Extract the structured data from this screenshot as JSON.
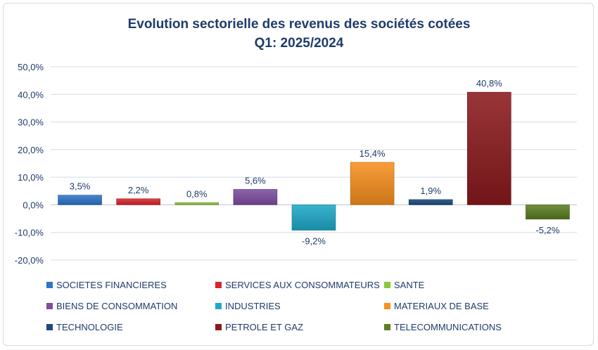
{
  "chart_data": {
    "type": "bar",
    "title": [
      "Evolution sectorielle des revenus des sociétés cotées",
      "Q1: 2025/2024"
    ],
    "ylim": [
      -20,
      50
    ],
    "yticks": [
      "50,0%",
      "40,0%",
      "30,0%",
      "20,0%",
      "10,0%",
      "0,0%",
      "-10,0%",
      "-20,0%"
    ],
    "grid": true,
    "legend_position": "bottom",
    "series": [
      {
        "name": "SOCIETES FINANCIERES",
        "value": 3.5,
        "label": "3,5%",
        "color": "#2e75c8"
      },
      {
        "name": "SERVICES AUX CONSOMMATEURS",
        "value": 2.2,
        "label": "2,2%",
        "color": "#d9252c"
      },
      {
        "name": "SANTE",
        "value": 0.8,
        "label": "0,8%",
        "color": "#8dc63f"
      },
      {
        "name": "BIENS DE CONSOMMATION",
        "value": 5.6,
        "label": "5,6%",
        "color": "#7e4ea1"
      },
      {
        "name": "INDUSTRIES",
        "value": -9.2,
        "label": "-9,2%",
        "color": "#1ea9c9"
      },
      {
        "name": "MATERIAUX DE BASE",
        "value": 15.4,
        "label": "15,4%",
        "color": "#f7901e"
      },
      {
        "name": "TECHNOLOGIE",
        "value": 1.9,
        "label": "1,9%",
        "color": "#1c4a7e"
      },
      {
        "name": "PETROLE ET GAZ",
        "value": 40.8,
        "label": "40,8%",
        "color": "#8b1a1d"
      },
      {
        "name": "TELECOMMUNICATIONS",
        "value": -5.2,
        "label": "-5,2%",
        "color": "#5a7f21"
      }
    ]
  }
}
